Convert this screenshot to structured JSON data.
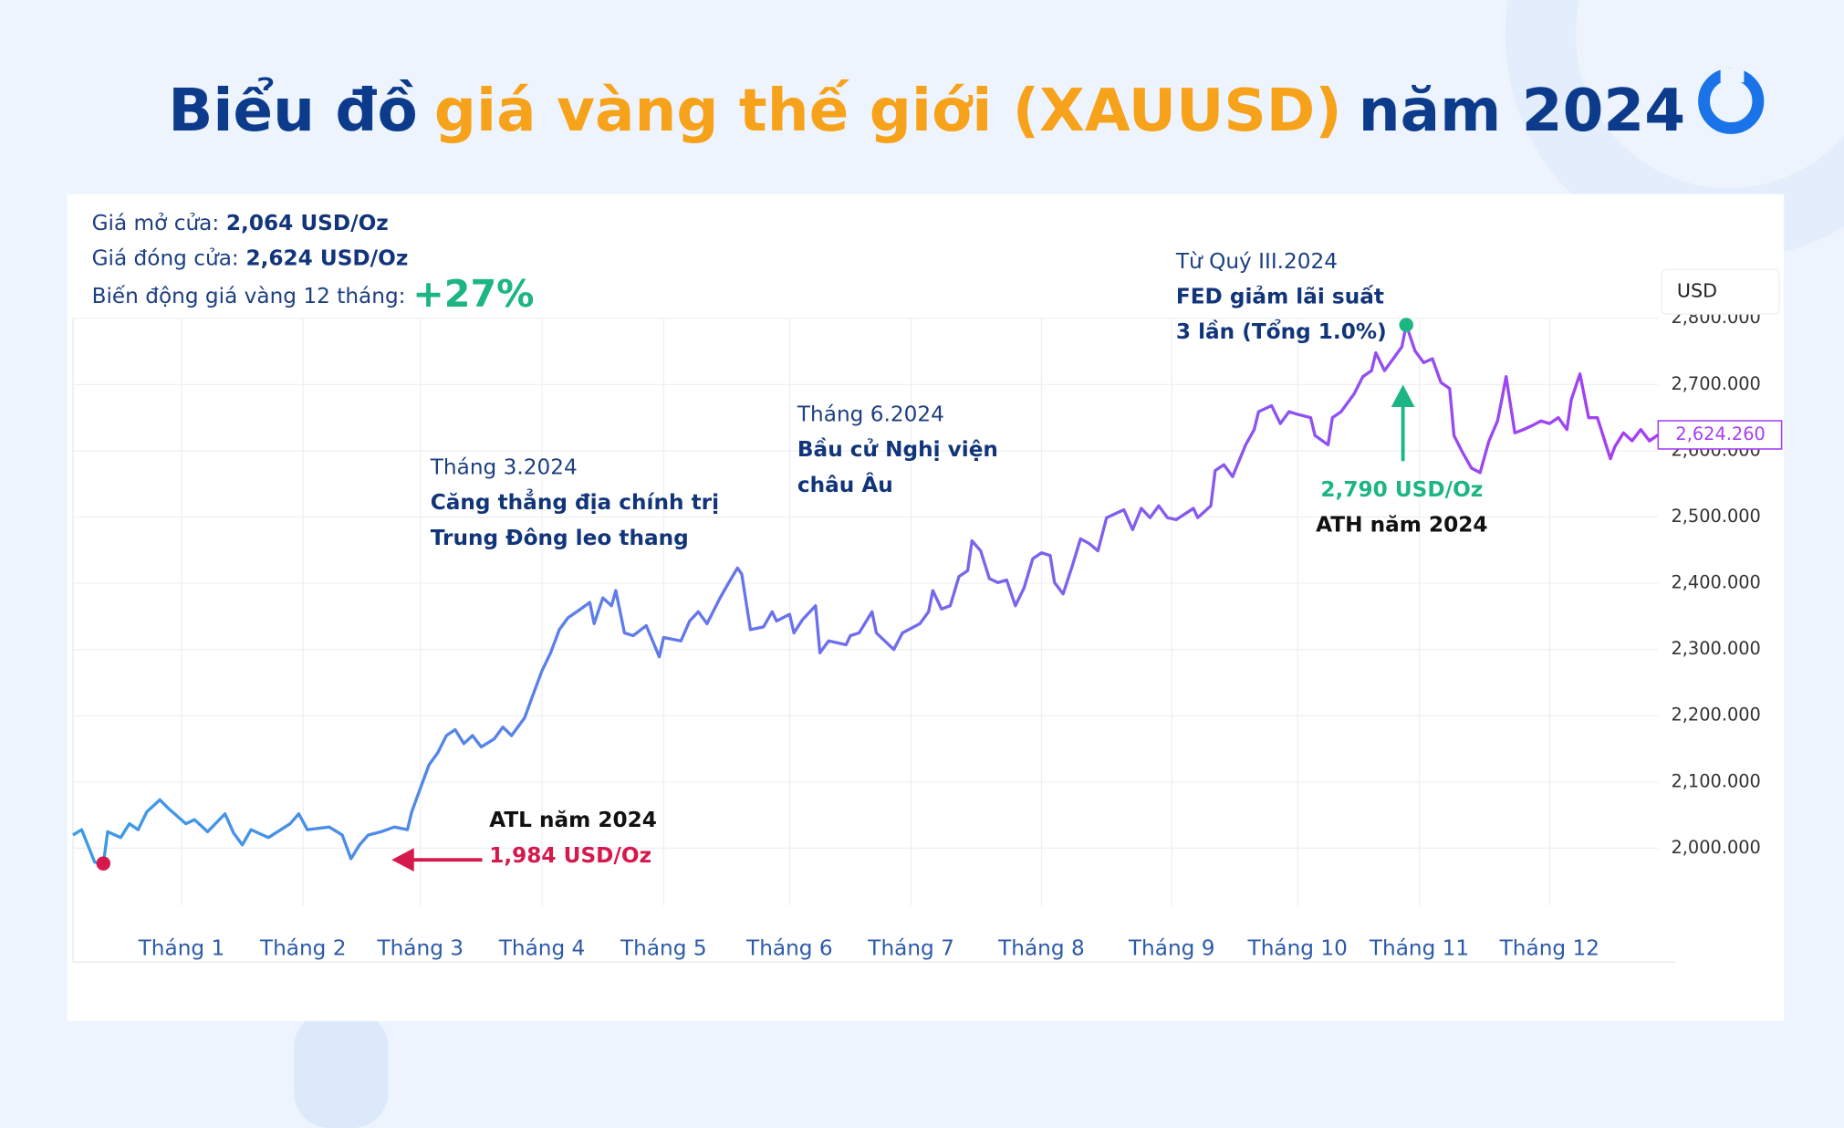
{
  "chart_data": {
    "type": "line",
    "title_parts": [
      "Biểu đồ",
      "giá vàng thế giới (XAUUSD)",
      "năm 2024"
    ],
    "title_colors": [
      "#0d3b8c",
      "#f7a21b",
      "#0d3b8c"
    ],
    "info": [
      {
        "label": "Giá mở cửa:",
        "value": "2,064 USD/Oz"
      },
      {
        "label": "Giá đóng cửa:",
        "value": "2,624 USD/Oz"
      },
      {
        "label": "Biến động giá vàng 12 tháng:",
        "value": "+27%"
      }
    ],
    "y_unit": "USD",
    "last_value_label": "2,624.260",
    "annotations": [
      {
        "date": "Tháng 3.2024",
        "lines": [
          "Căng thẳng địa chính trị",
          "Trung Đông leo thang"
        ]
      },
      {
        "date": "Tháng 6.2024",
        "lines": [
          "Bầu cử Nghị viện",
          "châu Âu"
        ]
      },
      {
        "date": "Từ Quý III.2024",
        "lines": [
          "FED giảm lãi suất",
          "3 lần (Tổng 1.0%)"
        ]
      }
    ],
    "atl": {
      "label": "ATL năm 2024",
      "price": "1,984 USD/Oz",
      "color": "#d6194c"
    },
    "ath": {
      "label": "ATH năm 2024",
      "price": "2,790 USD/Oz",
      "color": "#1db584"
    },
    "xlim": [
      1,
      366
    ],
    "xticks": [
      {
        "value": 26,
        "label": "Tháng 1"
      },
      {
        "value": 54,
        "label": "Tháng 2"
      },
      {
        "value": 81,
        "label": "Tháng 3"
      },
      {
        "value": 109,
        "label": "Tháng 4"
      },
      {
        "value": 137,
        "label": "Tháng 5"
      },
      {
        "value": 166,
        "label": "Tháng 6"
      },
      {
        "value": 194,
        "label": "Tháng 7"
      },
      {
        "value": 224,
        "label": "Tháng 8"
      },
      {
        "value": 254,
        "label": "Tháng 9"
      },
      {
        "value": 283,
        "label": "Tháng 10"
      },
      {
        "value": 311,
        "label": "Tháng 11"
      },
      {
        "value": 341,
        "label": "Tháng 12"
      }
    ],
    "ylim": [
      1828,
      2800
    ],
    "yticks": [
      {
        "value": 2000,
        "label": "2,000.000"
      },
      {
        "value": 2100,
        "label": "2,100.000"
      },
      {
        "value": 2200,
        "label": "2,200.000"
      },
      {
        "value": 2300,
        "label": "2,300.000"
      },
      {
        "value": 2400,
        "label": "2,400.000"
      },
      {
        "value": 2500,
        "label": "2,500.000"
      },
      {
        "value": 2600,
        "label": "2,600.000"
      },
      {
        "value": 2700,
        "label": "2,700.000"
      },
      {
        "value": 2800,
        "label": "2,800.000"
      }
    ],
    "grid": true,
    "series": [
      {
        "colors": [
          "#3a9ce6",
          "#a63ef2"
        ],
        "x": [
          1,
          3,
          6,
          8,
          9,
          12,
          14,
          16,
          18,
          21,
          23,
          27,
          29,
          32,
          36,
          38,
          40,
          42,
          46,
          51,
          53,
          55,
          60,
          63,
          65,
          67,
          69,
          72,
          75,
          78,
          79,
          81,
          83,
          85,
          87,
          89,
          91,
          93,
          95,
          98,
          100,
          102,
          105,
          107,
          109,
          111,
          113,
          115,
          117,
          120,
          121,
          123,
          125,
          126,
          128,
          130,
          133,
          136,
          137,
          141,
          143,
          145,
          147,
          150,
          152,
          154,
          155,
          157,
          160,
          162,
          163,
          166,
          167,
          169,
          172,
          173,
          175,
          179,
          180,
          182,
          185,
          186,
          190,
          192,
          196,
          198,
          199,
          201,
          203,
          205,
          207,
          208,
          210,
          212,
          214,
          216,
          218,
          220,
          222,
          224,
          226,
          227,
          229,
          231,
          233,
          235,
          237,
          239,
          243,
          245,
          247,
          249,
          251,
          253,
          255,
          259,
          260,
          263,
          264,
          266,
          268,
          271,
          273,
          274,
          277,
          279,
          281,
          283,
          286,
          287,
          290,
          291,
          293,
          296,
          298,
          300,
          301,
          303,
          305,
          307,
          308,
          310,
          312,
          314,
          316,
          318,
          319,
          321,
          323,
          325,
          327,
          329,
          330,
          331,
          333,
          335,
          337,
          339,
          341,
          343,
          345,
          346,
          348,
          350,
          352,
          355,
          356,
          358,
          360,
          362,
          364,
          366
        ],
        "values": [
          2020,
          2028,
          1979,
          1977,
          2025,
          2016,
          2037,
          2028,
          2055,
          2073,
          2060,
          2037,
          2043,
          2025,
          2052,
          2023,
          2005,
          2028,
          2016,
          2037,
          2052,
          2028,
          2032,
          2020,
          1984,
          2005,
          2020,
          2025,
          2032,
          2028,
          2055,
          2091,
          2126,
          2144,
          2170,
          2179,
          2158,
          2170,
          2153,
          2165,
          2183,
          2170,
          2197,
          2233,
          2268,
          2295,
          2330,
          2348,
          2357,
          2371,
          2339,
          2378,
          2366,
          2389,
          2325,
          2321,
          2336,
          2289,
          2318,
          2313,
          2343,
          2357,
          2339,
          2378,
          2401,
          2423,
          2414,
          2330,
          2334,
          2357,
          2343,
          2353,
          2325,
          2345,
          2366,
          2295,
          2313,
          2307,
          2321,
          2325,
          2357,
          2325,
          2300,
          2325,
          2339,
          2357,
          2389,
          2361,
          2366,
          2410,
          2419,
          2464,
          2449,
          2407,
          2401,
          2405,
          2366,
          2393,
          2437,
          2446,
          2442,
          2401,
          2384,
          2424,
          2467,
          2460,
          2449,
          2499,
          2511,
          2481,
          2513,
          2499,
          2517,
          2499,
          2496,
          2513,
          2499,
          2517,
          2570,
          2579,
          2561,
          2609,
          2632,
          2659,
          2668,
          2641,
          2659,
          2655,
          2650,
          2623,
          2609,
          2650,
          2659,
          2686,
          2712,
          2721,
          2748,
          2721,
          2739,
          2757,
          2790,
          2751,
          2733,
          2739,
          2703,
          2694,
          2623,
          2597,
          2574,
          2567,
          2614,
          2645,
          2677,
          2712,
          2627,
          2632,
          2638,
          2645,
          2641,
          2650,
          2632,
          2677,
          2716,
          2650,
          2650,
          2588,
          2606,
          2627,
          2615,
          2632,
          2615,
          2624
        ]
      }
    ]
  }
}
